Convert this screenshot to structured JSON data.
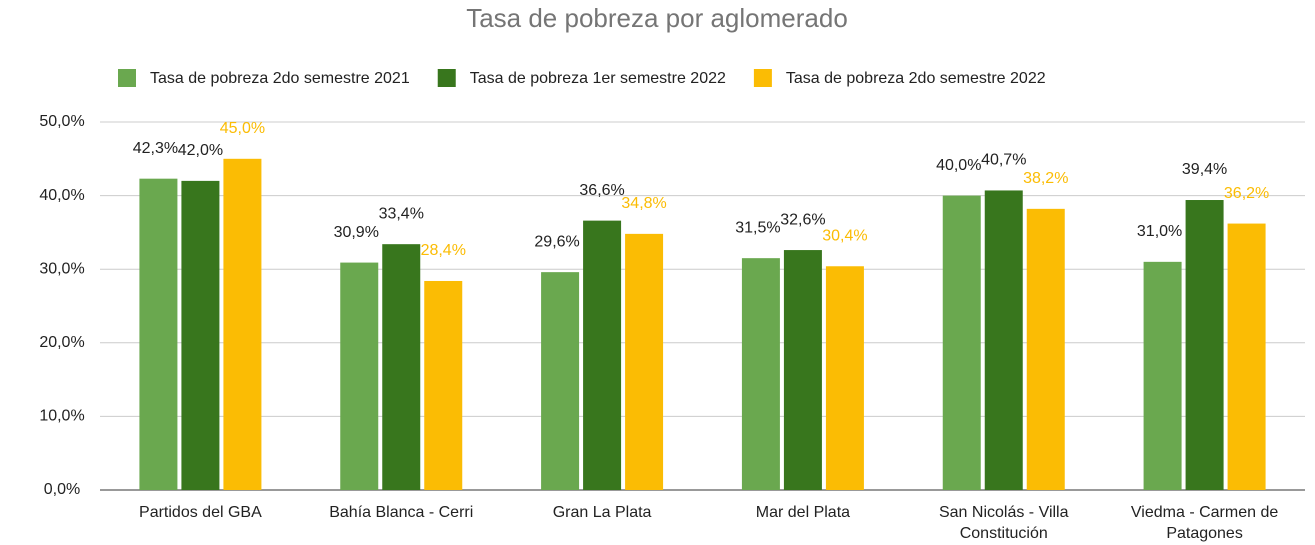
{
  "chart_data": {
    "type": "bar",
    "title": "Tasa de pobreza por aglomerado",
    "categories": [
      "Partidos del GBA",
      "Bahía Blanca - Cerri",
      "Gran La Plata",
      "Mar del Plata",
      "San Nicolás - Villa Constitución",
      "Viedma - Carmen de Patagones"
    ],
    "series": [
      {
        "name": "Tasa de pobreza 2do semestre 2021",
        "color": "#6aa84f",
        "values": [
          42.3,
          30.9,
          29.6,
          31.5,
          40.0,
          31.0
        ],
        "value_labels": [
          "42,3%",
          "30,9%",
          "29,6%",
          "31,5%",
          "40,0%",
          "31,0%"
        ]
      },
      {
        "name": "Tasa de pobreza 1er semestre 2022",
        "color": "#38761d",
        "values": [
          42.0,
          33.4,
          36.6,
          32.6,
          40.7,
          39.4
        ],
        "value_labels": [
          "42,0%",
          "33,4%",
          "36,6%",
          "32,6%",
          "40,7%",
          "39,4%"
        ]
      },
      {
        "name": "Tasa de pobreza 2do semestre 2022",
        "color": "#fbbc04",
        "values": [
          45.0,
          28.4,
          34.8,
          30.4,
          38.2,
          36.2
        ],
        "value_labels": [
          "45,0%",
          "28,4%",
          "34,8%",
          "30,4%",
          "38,2%",
          "36,2%"
        ]
      }
    ],
    "ylim": [
      0,
      50
    ],
    "yticks": [
      {
        "value": 0,
        "label": "0,0%"
      },
      {
        "value": 10,
        "label": "10,0%"
      },
      {
        "value": 20,
        "label": "20,0%"
      },
      {
        "value": 30,
        "label": "30,0%"
      },
      {
        "value": 40,
        "label": "40,0%"
      },
      {
        "value": 50,
        "label": "50,0%"
      }
    ],
    "grid": true,
    "legend": "top"
  }
}
